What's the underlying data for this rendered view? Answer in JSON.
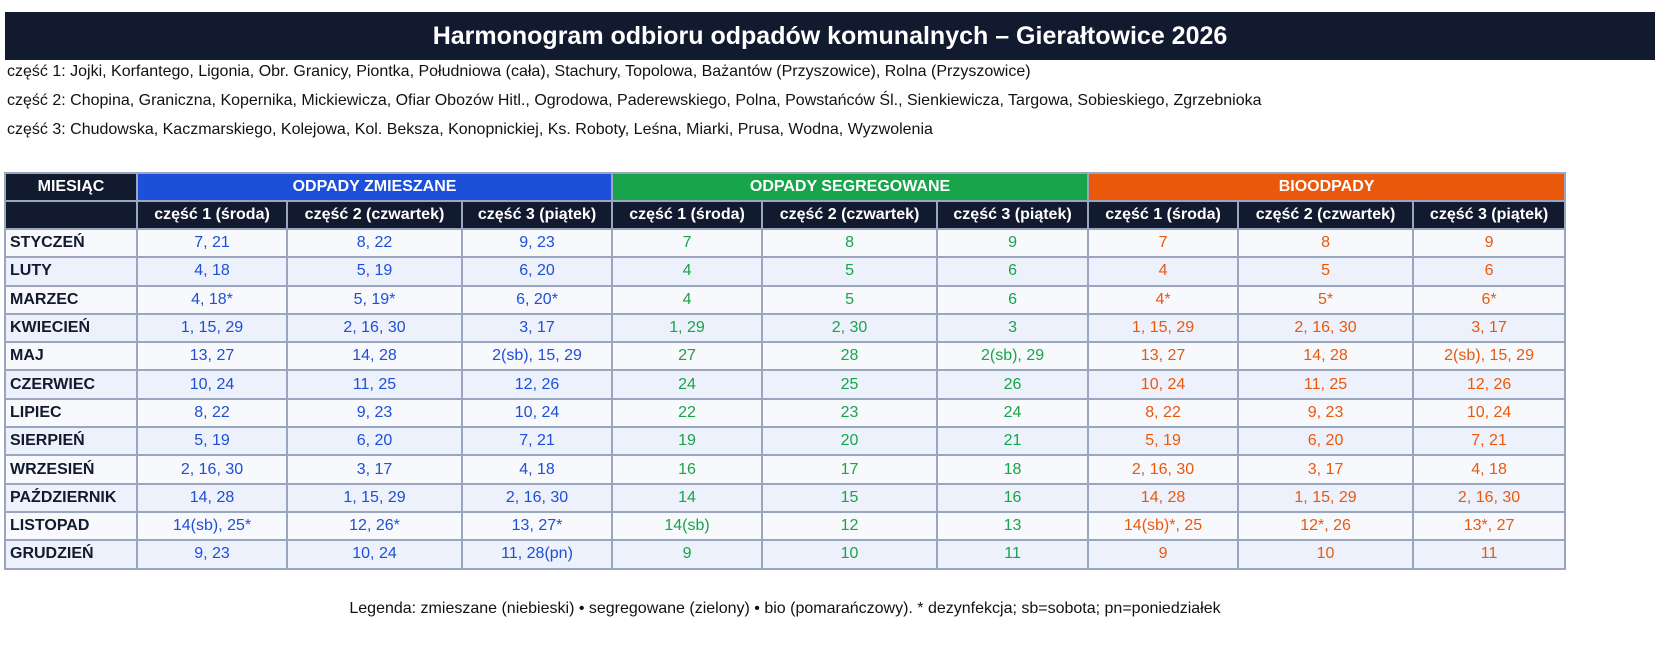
{
  "title": "Harmonogram odbioru odpadów komunalnych – Gierałtowice 2026",
  "streets": [
    "część 1: Jojki, Korfantego, Ligonia, Obr. Granicy, Piontka, Południowa (cała), Stachury, Topolowa, Bażantów (Przyszowice), Rolna (Przyszowice)",
    "część 2: Chopina, Graniczna, Kopernika, Mickiewicza, Ofiar Obozów Hitl., Ogrodowa, Paderewskiego, Polna, Powstańców Śl., Sienkiewicza, Targowa, Sobieskiego, Zgrzebnioka",
    "część 3: Chudowska, Kaczmarskiego, Kolejowa, Kol. Beksza, Konopnickiej, Ks. Roboty, Leśna, Miarki, Prusa, Wodna, Wyzwolenia"
  ],
  "table": {
    "month_header": "MIESIĄC",
    "groups": [
      "ODPADY ZMIESZANE",
      "ODPADY SEGREGOWANE",
      "BIOODPADY"
    ],
    "subheaders": [
      "część 1  (środa)",
      "część 2 (czwartek)",
      "część 3 (piątek)"
    ],
    "colors": {
      "header": "#111a2e",
      "mixed": "#1d4fd8",
      "segregated": "#18a44a",
      "bio": "#ea580c"
    },
    "rows": [
      {
        "month": "STYCZEŃ",
        "cells": [
          "7, 21",
          "8, 22",
          "9, 23",
          "7",
          "8",
          "9",
          "7",
          "8",
          "9"
        ]
      },
      {
        "month": "LUTY",
        "cells": [
          "4, 18",
          "5, 19",
          "6, 20",
          "4",
          "5",
          "6",
          "4",
          "5",
          "6"
        ]
      },
      {
        "month": "MARZEC",
        "cells": [
          "4, 18*",
          "5, 19*",
          "6, 20*",
          "4",
          "5",
          "6",
          "4*",
          "5*",
          "6*"
        ]
      },
      {
        "month": "KWIECIEŃ",
        "cells": [
          "1, 15, 29",
          "2, 16, 30",
          "3, 17",
          "1, 29",
          "2, 30",
          "3",
          "1, 15, 29",
          "2, 16, 30",
          "3, 17"
        ]
      },
      {
        "month": "MAJ",
        "cells": [
          "13, 27",
          "14, 28",
          "2(sb), 15, 29",
          "27",
          "28",
          "2(sb), 29",
          "13, 27",
          "14, 28",
          "2(sb), 15, 29"
        ]
      },
      {
        "month": "CZERWIEC",
        "cells": [
          "10, 24",
          "11, 25",
          "12, 26",
          "24",
          "25",
          "26",
          "10, 24",
          "11, 25",
          "12, 26"
        ]
      },
      {
        "month": "LIPIEC",
        "cells": [
          "8, 22",
          "9, 23",
          "10, 24",
          "22",
          "23",
          "24",
          "8, 22",
          "9, 23",
          "10, 24"
        ]
      },
      {
        "month": "SIERPIEŃ",
        "cells": [
          "5, 19",
          "6, 20",
          "7, 21",
          "19",
          "20",
          "21",
          "5, 19",
          "6, 20",
          "7, 21"
        ]
      },
      {
        "month": "WRZESIEŃ",
        "cells": [
          "2, 16, 30",
          "3, 17",
          "4, 18",
          "16",
          "17",
          "18",
          "2, 16, 30",
          "3, 17",
          "4, 18"
        ]
      },
      {
        "month": "PAŹDZIERNIK",
        "cells": [
          "14, 28",
          "1, 15, 29",
          "2, 16, 30",
          "14",
          "15",
          "16",
          "14, 28",
          "1, 15, 29",
          "2, 16, 30"
        ]
      },
      {
        "month": "LISTOPAD",
        "cells": [
          "14(sb), 25*",
          "12, 26*",
          "13, 27*",
          "14(sb)",
          "12",
          "13",
          "14(sb)*, 25",
          "12*, 26",
          "13*, 27"
        ]
      },
      {
        "month": "GRUDZIEŃ",
        "cells": [
          "9, 23",
          "10, 24",
          "11, 28(pn)",
          "9",
          "10",
          "11",
          "9",
          "10",
          "11"
        ]
      }
    ]
  },
  "legend": "Legenda: zmieszane (niebieski) • segregowane (zielony) • bio (pomarańczowy). * dezynfekcja; sb=sobota; pn=poniedziałek"
}
